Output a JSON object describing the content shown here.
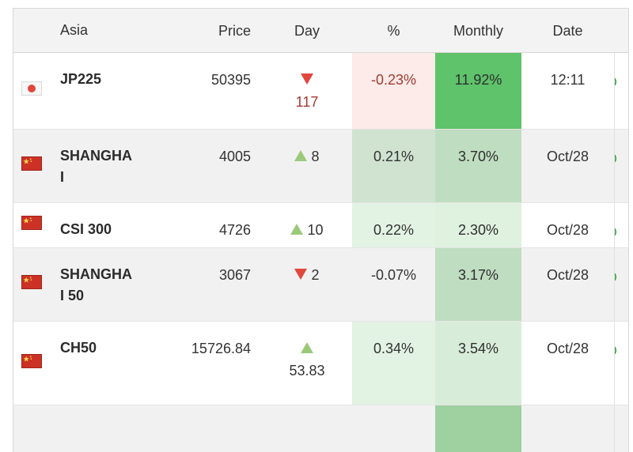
{
  "header": {
    "asia": "Asia",
    "price": "Price",
    "day": "Day",
    "pct": "%",
    "monthly": "Monthly",
    "date": "Date"
  },
  "colors": {
    "up_triangle": "#9bc97a",
    "down_triangle": "#e2473d",
    "negative_text": "#a33a31",
    "solid_green_bg": "#5ec36a",
    "pink_bg": "#fcebe9",
    "clock_green": "#2f9b36",
    "stripe_bg": "#f1f1f1",
    "header_bg": "#f3f3f3"
  },
  "rows": [
    {
      "flag": "japan-flag",
      "symbol": "JP225",
      "price": "50395",
      "day_dir": "down",
      "day_value": "117",
      "day_value_color": "#a33a31",
      "pct": "-0.23%",
      "pct_color": "#a33a31",
      "pct_bg": "#fcebe9",
      "monthly": "11.92%",
      "monthly_bg": "#5ec36a",
      "date": "12:11",
      "delayed_clock": true
    },
    {
      "flag": "china-flag",
      "symbol": "SHANGHAI",
      "price": "4005",
      "day_dir": "up",
      "day_value": "8",
      "pct": "0.21%",
      "pct_bg": "rgba(76,175,80,0.20)",
      "monthly": "3.70%",
      "monthly_bg": "rgba(76,175,80,0.30)",
      "date": "Oct/28",
      "delayed_clock": true
    },
    {
      "flag": "china-flag",
      "symbol": "CSI 300",
      "price": "4726",
      "day_dir": "up",
      "day_value": "10",
      "pct": "0.22%",
      "pct_bg": "rgba(76,175,80,0.16)",
      "monthly": "2.30%",
      "monthly_bg": "rgba(76,175,80,0.18)",
      "date": "Oct/28",
      "delayed_clock": true
    },
    {
      "flag": "china-flag",
      "symbol": "SHANGHAI 50",
      "price": "3067",
      "day_dir": "down",
      "day_value": "2",
      "pct": "-0.07%",
      "pct_bg": "",
      "monthly": "3.17%",
      "monthly_bg": "rgba(76,175,80,0.30)",
      "date": "Oct/28",
      "delayed_clock": true
    },
    {
      "flag": "china-flag",
      "symbol": "CH50",
      "price": "15726.84",
      "day_dir": "up",
      "day_value": "53.83",
      "pct": "0.34%",
      "pct_bg": "rgba(76,175,80,0.16)",
      "monthly": "3.54%",
      "monthly_bg": "rgba(76,175,80,0.22)",
      "date": "Oct/28",
      "delayed_clock": true
    }
  ],
  "partial_next_row": {
    "monthly_bg": "rgba(76,175,80,0.5)"
  }
}
